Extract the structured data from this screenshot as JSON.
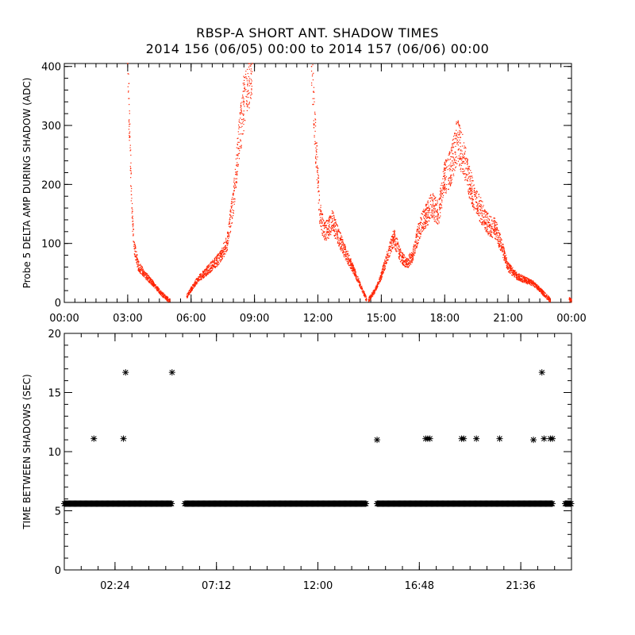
{
  "title_line1": "RBSP-A SHORT ANT. SHADOW TIMES",
  "title_line2": "2014 156 (06/05) 00:00 to 2014 157 (06/06) 00:00",
  "chart_data": [
    {
      "type": "scatter",
      "ylabel": "Probe 5 DELTA AMP DURING SHADOW (ADC)",
      "xlim": [
        0,
        24
      ],
      "ylim": [
        0,
        405
      ],
      "x_ticks": [
        0,
        3,
        6,
        9,
        12,
        15,
        18,
        21,
        24
      ],
      "x_tick_labels": [
        "00:00",
        "03:00",
        "06:00",
        "09:00",
        "12:00",
        "15:00",
        "18:00",
        "21:00",
        "00:00"
      ],
      "y_ticks": [
        0,
        100,
        200,
        300,
        400
      ],
      "y_tick_labels": [
        "0",
        "100",
        "200",
        "300",
        "400"
      ],
      "marker_color": "#ff2200",
      "segments": [
        {
          "x": [
            3.0,
            3.1,
            3.2,
            3.3,
            3.5,
            3.8,
            4.2,
            4.6,
            5.0
          ],
          "y": [
            405,
            280,
            160,
            95,
            62,
            48,
            32,
            15,
            2
          ]
        },
        {
          "x": [
            5.8,
            6.0,
            6.3,
            6.7,
            7.0,
            7.4,
            7.7,
            8.0,
            8.2,
            8.5,
            8.9
          ],
          "y": [
            10,
            22,
            38,
            52,
            62,
            78,
            100,
            170,
            250,
            340,
            405
          ]
        },
        {
          "x": [
            11.7,
            11.9,
            12.1,
            12.3,
            12.5,
            12.7,
            12.9,
            13.2,
            13.6,
            14.0,
            14.3
          ],
          "y": [
            400,
            270,
            150,
            120,
            125,
            138,
            118,
            92,
            62,
            30,
            5
          ]
        },
        {
          "x": [
            14.4,
            14.7,
            15.0,
            15.3,
            15.6,
            15.9,
            16.2,
            16.5,
            16.8,
            17.1,
            17.4,
            17.7,
            18.0,
            18.3,
            18.6,
            18.9,
            19.2,
            19.5,
            19.8,
            20.1,
            20.4,
            20.7,
            21.0,
            21.4,
            21.8,
            22.2,
            22.6,
            23.0
          ],
          "y": [
            4,
            20,
            45,
            80,
            110,
            80,
            65,
            80,
            125,
            145,
            165,
            150,
            210,
            230,
            275,
            245,
            200,
            170,
            150,
            130,
            125,
            95,
            60,
            45,
            38,
            32,
            18,
            4
          ]
        },
        {
          "x": [
            23.9,
            24.0
          ],
          "y": [
            5,
            3
          ]
        }
      ]
    },
    {
      "type": "scatter",
      "ylabel": "TIME BETWEEN SHADOWS (SEC)",
      "xlim": [
        0,
        24
      ],
      "ylim": [
        0,
        20
      ],
      "x_ticks": [
        2.4,
        7.2,
        12.0,
        16.8,
        21.6
      ],
      "x_tick_labels": [
        "02:24",
        "07:12",
        "12:00",
        "16:48",
        "21:36"
      ],
      "y_ticks": [
        0,
        5,
        10,
        15,
        20
      ],
      "y_tick_labels": [
        "0",
        "5",
        "10",
        "15",
        "20"
      ],
      "marker_color": "#000000",
      "baseline_value": 5.6,
      "baseline_ranges": [
        [
          0,
          5.1
        ],
        [
          5.7,
          14.3
        ],
        [
          14.8,
          23.1
        ],
        [
          23.7,
          24.0
        ]
      ],
      "outliers": [
        {
          "x": 1.4,
          "y": 11.1
        },
        {
          "x": 2.8,
          "y": 11.1
        },
        {
          "x": 2.9,
          "y": 16.7
        },
        {
          "x": 5.1,
          "y": 16.7
        },
        {
          "x": 14.8,
          "y": 11.0
        },
        {
          "x": 17.1,
          "y": 11.1
        },
        {
          "x": 17.2,
          "y": 11.1
        },
        {
          "x": 17.3,
          "y": 11.1
        },
        {
          "x": 18.8,
          "y": 11.1
        },
        {
          "x": 18.9,
          "y": 11.1
        },
        {
          "x": 19.5,
          "y": 11.1
        },
        {
          "x": 20.6,
          "y": 11.1
        },
        {
          "x": 22.2,
          "y": 11.0
        },
        {
          "x": 22.6,
          "y": 16.7
        },
        {
          "x": 22.7,
          "y": 11.1
        },
        {
          "x": 23.0,
          "y": 11.1
        },
        {
          "x": 23.1,
          "y": 11.1
        }
      ]
    }
  ]
}
